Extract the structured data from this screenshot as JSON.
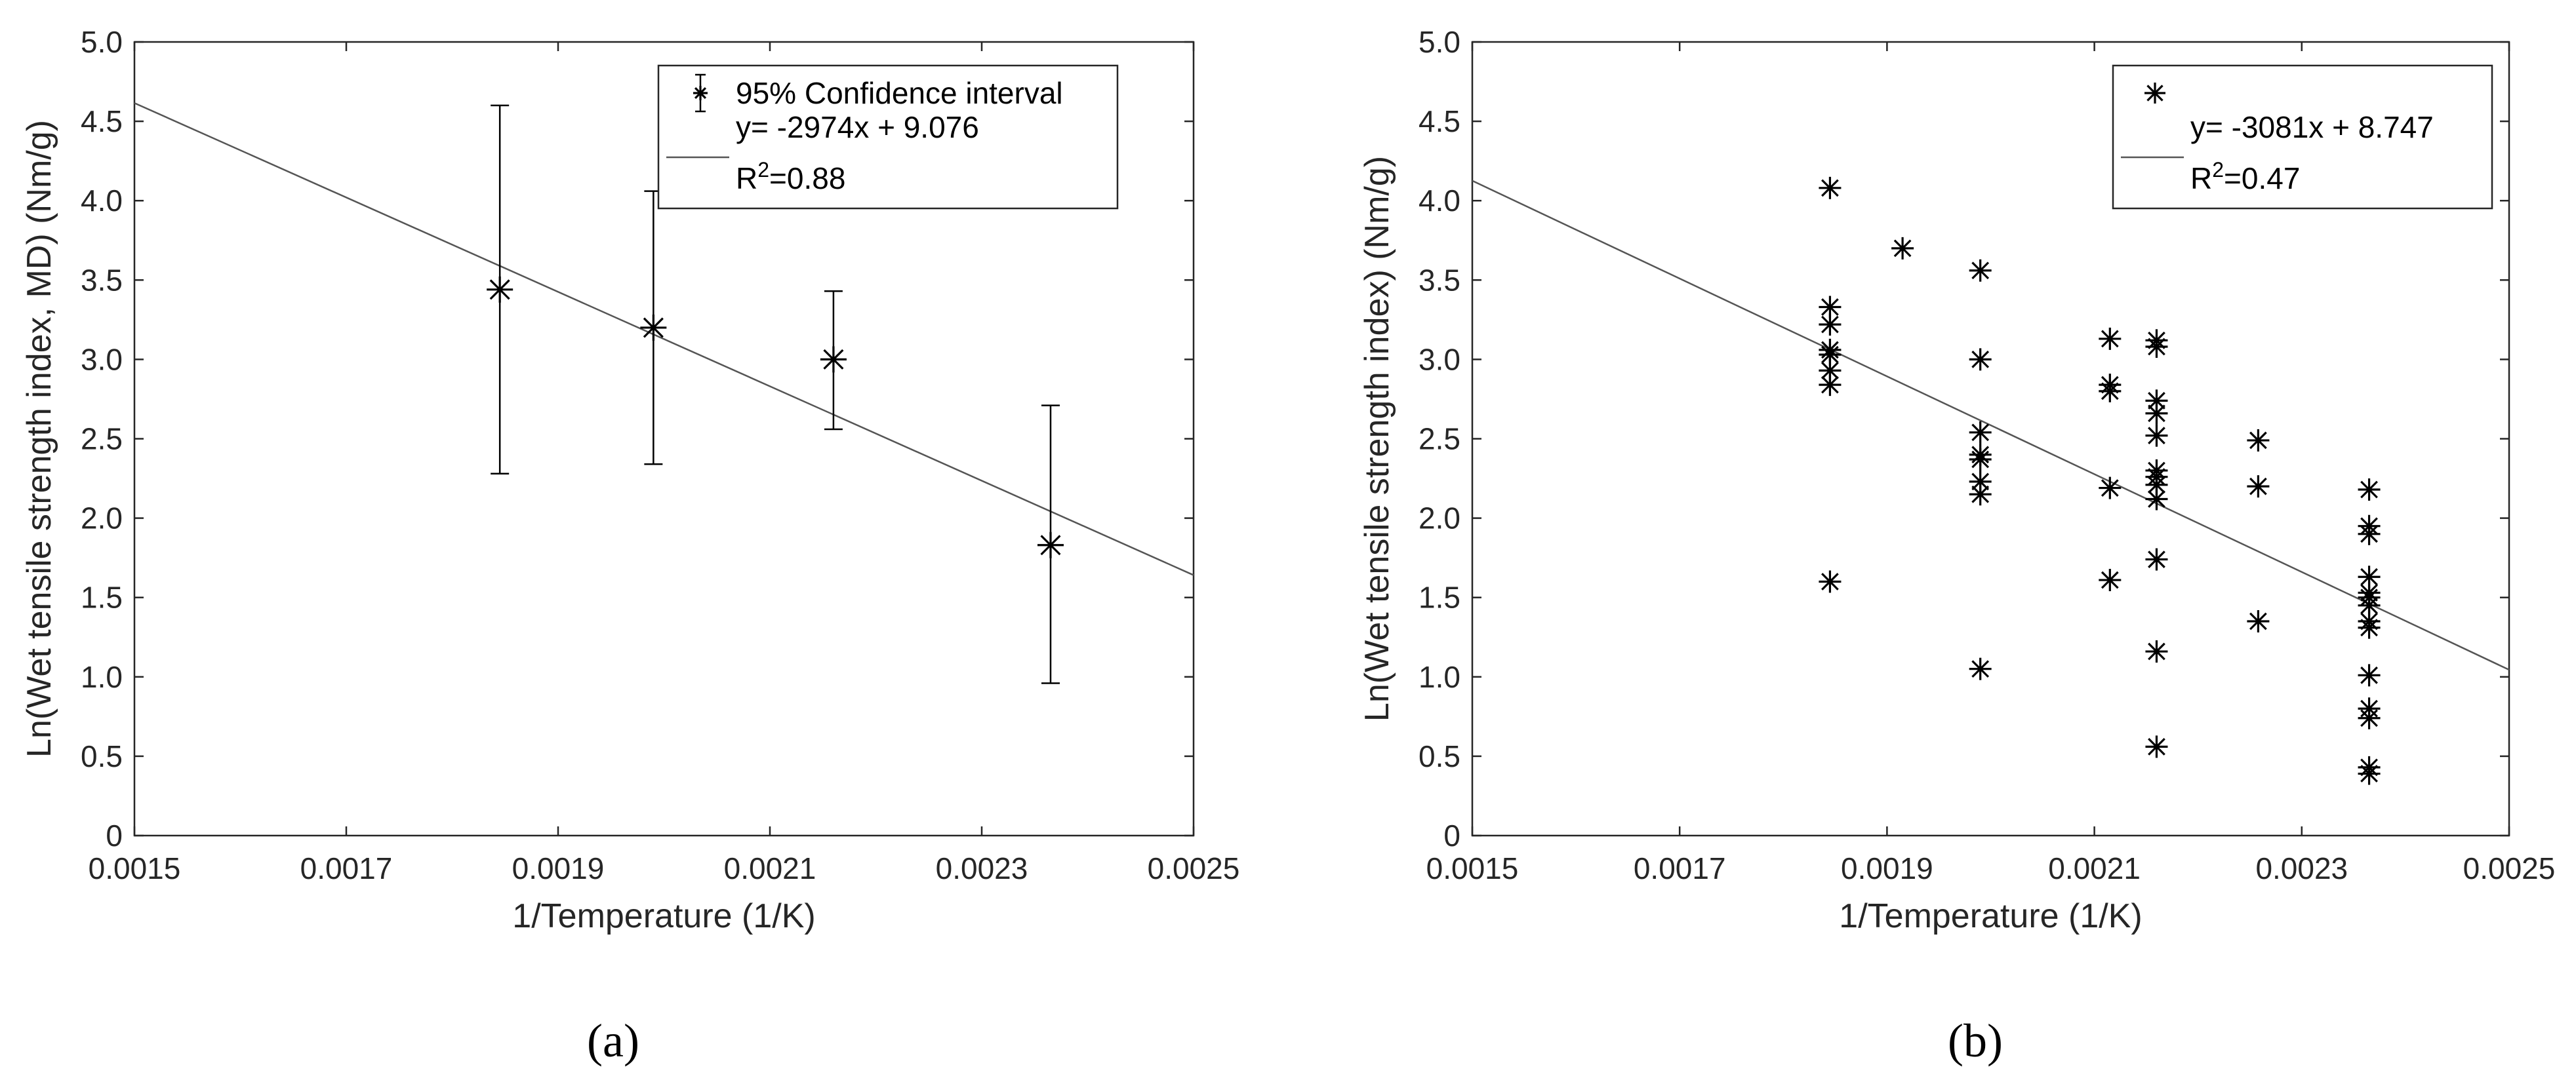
{
  "chart_data": [
    {
      "type": "scatter",
      "panel_label": "(a)",
      "xlabel": "1/Temperature (1/K)",
      "ylabel": "Ln(Wet tensile strength index, MD) (Nm/g)",
      "xlim": [
        0.0015,
        0.0025
      ],
      "ylim": [
        0,
        5.0
      ],
      "x_ticks": [
        "0.0015",
        "0.0017",
        "0.0019",
        "0.0021",
        "0.0023",
        "0.0025"
      ],
      "y_ticks": [
        "0",
        "0.5",
        "1.0",
        "1.5",
        "2.0",
        "2.5",
        "3.0",
        "3.5",
        "4.0",
        "4.5",
        "5.0"
      ],
      "grid": false,
      "legend_position": "top-right",
      "legend": {
        "marker_label": "95% Confidence interval",
        "line_label": "y= -2974x + 9.076",
        "r2_prefix": "R",
        "r2_sup": "2",
        "r2_suffix": "=0.88"
      },
      "series": [
        {
          "name": "95% Confidence interval",
          "marker": "asterisk",
          "points": [
            {
              "x": 0.001845,
              "y": 3.44,
              "ylow": 2.28,
              "yhigh": 4.6
            },
            {
              "x": 0.00199,
              "y": 3.2,
              "ylow": 2.34,
              "yhigh": 4.06
            },
            {
              "x": 0.00216,
              "y": 3.0,
              "ylow": 2.56,
              "yhigh": 3.43
            },
            {
              "x": 0.002365,
              "y": 1.83,
              "ylow": 0.96,
              "yhigh": 2.71
            }
          ]
        },
        {
          "name": "y= -2974x + 9.076",
          "type": "fit_line",
          "slope": -2974,
          "intercept": 9.076
        }
      ]
    },
    {
      "type": "scatter",
      "panel_label": "(b)",
      "xlabel": "1/Temperature (1/K)",
      "ylabel": "Ln(Wet tensile strength index) (Nm/g)",
      "xlim": [
        0.0015,
        0.0025
      ],
      "ylim": [
        0,
        5.0
      ],
      "x_ticks": [
        "0.0015",
        "0.0017",
        "0.0019",
        "0.0021",
        "0.0023",
        "0.0025"
      ],
      "y_ticks": [
        "0",
        "0.5",
        "1.0",
        "1.5",
        "2.0",
        "2.5",
        "3.0",
        "3.5",
        "4.0",
        "4.5",
        "5.0"
      ],
      "grid": false,
      "legend_position": "top-right",
      "legend": {
        "marker_label": "",
        "line_label": "y= -3081x + 8.747",
        "r2_prefix": "R",
        "r2_sup": "2",
        "r2_suffix": "=0.47"
      },
      "series": [
        {
          "name": "",
          "marker": "asterisk",
          "points": [
            {
              "x": 0.001845,
              "y": 4.08
            },
            {
              "x": 0.001845,
              "y": 3.33
            },
            {
              "x": 0.001845,
              "y": 3.22
            },
            {
              "x": 0.001845,
              "y": 3.06
            },
            {
              "x": 0.001845,
              "y": 3.03
            },
            {
              "x": 0.001845,
              "y": 2.93
            },
            {
              "x": 0.001845,
              "y": 2.84
            },
            {
              "x": 0.001845,
              "y": 1.6
            },
            {
              "x": 0.001915,
              "y": 3.7
            },
            {
              "x": 0.00199,
              "y": 3.56
            },
            {
              "x": 0.00199,
              "y": 3.0
            },
            {
              "x": 0.00199,
              "y": 2.54
            },
            {
              "x": 0.00199,
              "y": 2.4
            },
            {
              "x": 0.00199,
              "y": 2.37
            },
            {
              "x": 0.00199,
              "y": 2.23
            },
            {
              "x": 0.00199,
              "y": 2.15
            },
            {
              "x": 0.00199,
              "y": 1.05
            },
            {
              "x": 0.002115,
              "y": 3.13
            },
            {
              "x": 0.002115,
              "y": 2.84
            },
            {
              "x": 0.002115,
              "y": 2.8
            },
            {
              "x": 0.002115,
              "y": 2.19
            },
            {
              "x": 0.002115,
              "y": 1.61
            },
            {
              "x": 0.00216,
              "y": 3.12
            },
            {
              "x": 0.00216,
              "y": 3.08
            },
            {
              "x": 0.00216,
              "y": 2.74
            },
            {
              "x": 0.00216,
              "y": 2.66
            },
            {
              "x": 0.00216,
              "y": 2.52
            },
            {
              "x": 0.00216,
              "y": 2.3
            },
            {
              "x": 0.00216,
              "y": 2.26
            },
            {
              "x": 0.00216,
              "y": 2.21
            },
            {
              "x": 0.00216,
              "y": 2.12
            },
            {
              "x": 0.00216,
              "y": 1.74
            },
            {
              "x": 0.00216,
              "y": 1.16
            },
            {
              "x": 0.00216,
              "y": 0.56
            },
            {
              "x": 0.002258,
              "y": 2.49
            },
            {
              "x": 0.002258,
              "y": 2.2
            },
            {
              "x": 0.002258,
              "y": 1.35
            },
            {
              "x": 0.002365,
              "y": 2.18
            },
            {
              "x": 0.002365,
              "y": 1.95
            },
            {
              "x": 0.002365,
              "y": 1.9
            },
            {
              "x": 0.002365,
              "y": 1.63
            },
            {
              "x": 0.002365,
              "y": 1.53
            },
            {
              "x": 0.002365,
              "y": 1.5
            },
            {
              "x": 0.002365,
              "y": 1.45
            },
            {
              "x": 0.002365,
              "y": 1.35
            },
            {
              "x": 0.002365,
              "y": 1.31
            },
            {
              "x": 0.002365,
              "y": 1.01
            },
            {
              "x": 0.002365,
              "y": 0.8
            },
            {
              "x": 0.002365,
              "y": 0.74
            },
            {
              "x": 0.002365,
              "y": 0.43
            },
            {
              "x": 0.002365,
              "y": 0.39
            }
          ]
        },
        {
          "name": "y= -3081x + 8.747",
          "type": "fit_line",
          "slope": -3081,
          "intercept": 8.747
        }
      ]
    }
  ]
}
